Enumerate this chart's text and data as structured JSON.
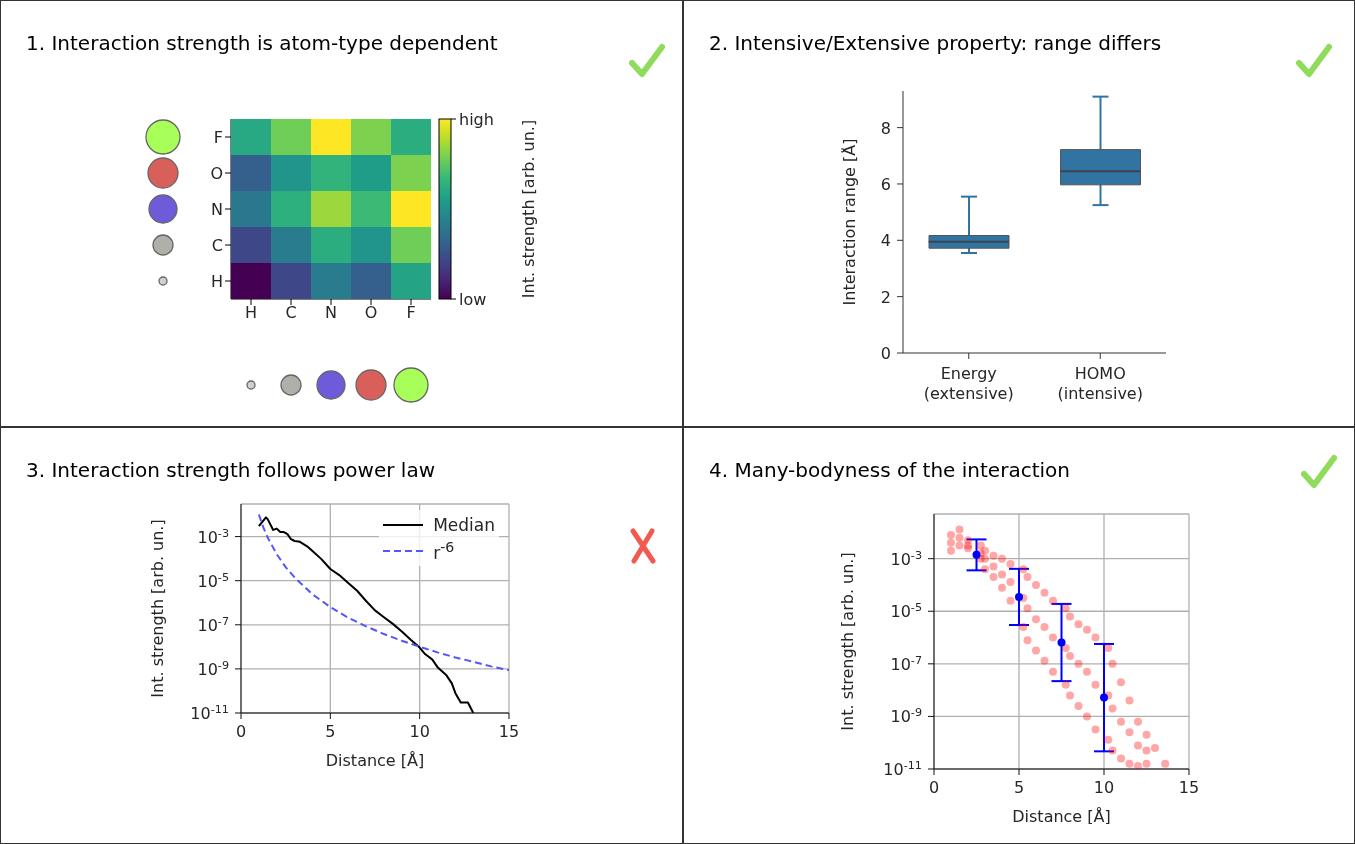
{
  "chart_data": [
    {
      "type": "heatmap",
      "title": "1. Interaction strength is atom-type dependent",
      "clabel": "Int. strength [arb. un.]",
      "categories": [
        "H",
        "C",
        "N",
        "O",
        "F"
      ],
      "y_categories": [
        "F",
        "O",
        "N",
        "C",
        "H"
      ],
      "cells": [
        [
          0.6,
          0.78,
          1.0,
          0.8,
          0.62
        ],
        [
          0.3,
          0.52,
          0.65,
          0.55,
          0.8
        ],
        [
          0.4,
          0.63,
          0.85,
          0.68,
          1.0
        ],
        [
          0.22,
          0.42,
          0.62,
          0.52,
          0.78
        ],
        [
          0.0,
          0.22,
          0.42,
          0.3,
          0.58
        ]
      ],
      "clim": [
        0,
        1
      ],
      "cticks": [
        {
          "value": 0,
          "label": "low"
        },
        {
          "value": 1,
          "label": "high"
        }
      ]
    },
    {
      "type": "box",
      "title": "2. Intensive/Extensive property: range differs",
      "ylabel": "Interaction range [Å]",
      "categories": [
        "Energy (extensive)",
        "HOMO (intensive)"
      ],
      "color": "#3274a1",
      "boxes": [
        {
          "low": 3.55,
          "q1": 3.72,
          "median": 3.95,
          "q3": 4.17,
          "high": 5.55
        },
        {
          "low": 5.25,
          "q1": 5.97,
          "median": 6.45,
          "q3": 7.22,
          "high": 9.1
        }
      ],
      "ylim": [
        0,
        9.3
      ],
      "yticks": [
        0,
        2,
        4,
        6,
        8
      ]
    },
    {
      "type": "line",
      "title": "3. Interaction strength follows power law",
      "xlabel": "Distance [Å]",
      "ylabel": "Int. strength [arb. un.]",
      "log": true,
      "grid": true,
      "legend": "top right",
      "xlim": [
        0,
        15
      ],
      "xticks": [
        0,
        5,
        10,
        15
      ],
      "ylim": [
        1e-11,
        0.03
      ],
      "yticks": [
        {
          "value": 1e-11,
          "label": "10$^{-11}$"
        },
        {
          "value": 1e-09,
          "label": "10$^{-9}$"
        },
        {
          "value": 1e-07,
          "label": "10$^{-7}$"
        },
        {
          "value": 1e-05,
          "label": "10$^{-5}$"
        },
        {
          "value": 0.001,
          "label": "10$^{-3}$"
        }
      ],
      "series": [
        {
          "name": "Median",
          "color": "#000000",
          "line_style": "solid",
          "x": [
            1.0,
            1.4,
            1.5,
            1.8,
            2.0,
            2.2,
            2.4,
            2.6,
            2.8,
            3.0,
            3.3,
            3.7,
            4.0,
            4.5,
            5.0,
            5.5,
            6.0,
            6.5,
            7.0,
            7.5,
            8.0,
            8.5,
            9.0,
            9.5,
            10.0,
            10.3,
            10.7,
            11.0,
            11.5,
            11.8,
            12.0,
            12.3,
            12.7,
            13.0
          ],
          "values": [
            0.003,
            0.0074,
            0.006,
            0.002,
            0.0023,
            0.0016,
            0.0016,
            0.0013,
            0.00076,
            0.00063,
            0.00058,
            0.00036,
            0.00022,
            9.5e-05,
            3.4e-05,
            1.8e-05,
            7.9e-06,
            3.5e-06,
            1.2e-06,
            4.5e-07,
            2.2e-07,
            1.1e-07,
            5e-08,
            2.1e-08,
            9.3e-09,
            4.7e-09,
            2.7e-09,
            1.2e-09,
            5.1e-10,
            2.2e-10,
            7.9e-11,
            3e-11,
            3e-11,
            1e-11
          ]
        },
        {
          "name": "r$^{-6}$",
          "color": "#5555ff",
          "line_style": "dashed",
          "x": [
            1,
            1.25,
            1.5,
            2,
            2.5,
            3,
            4,
            5,
            6,
            7,
            8,
            9,
            10,
            11,
            12,
            13,
            14,
            15
          ],
          "values": [
            0.01,
            0.0026,
            0.00088,
            0.00016,
            4.1e-05,
            1.4e-05,
            2.4e-06,
            6.4e-07,
            2.1e-07,
            8.5e-08,
            3.8e-08,
            1.9e-08,
            1e-08,
            5.6e-09,
            3.3e-09,
            2.1e-09,
            1.3e-09,
            8.8e-10
          ]
        }
      ]
    },
    {
      "type": "scatter",
      "title": "4. Many-bodyness of the interaction",
      "xlabel": "Distance [Å]",
      "ylabel": "Int. strength [arb. un.]",
      "log": true,
      "grid": true,
      "marker": "circle",
      "xlim": [
        0,
        15
      ],
      "xticks": [
        0,
        5,
        10,
        15
      ],
      "ylim": [
        1e-11,
        0.05
      ],
      "yticks": [
        {
          "value": 1e-11,
          "label": "10$^{-11}$"
        },
        {
          "value": 1e-09,
          "label": "10$^{-9}$"
        },
        {
          "value": 1e-07,
          "label": "10$^{-7}$"
        },
        {
          "value": 1e-05,
          "label": "10$^{-5}$"
        },
        {
          "value": 0.001,
          "label": "10$^{-3}$"
        }
      ],
      "series": [
        {
          "color": "#ff0000",
          "x": [
            1.0,
            1.0,
            1.0,
            1.5,
            1.5,
            1.5,
            2.0,
            2.0,
            2.0,
            2.75,
            2.75,
            2.75,
            3.0,
            3.0,
            3.0,
            3.5,
            3.5,
            3.5,
            4.0,
            4.0,
            4.0,
            4.5,
            4.5,
            4.5,
            5.25,
            5.25,
            5.25,
            5.5,
            5.5,
            5.5,
            6.0,
            6.0,
            6.0,
            6.5,
            6.5,
            6.5,
            7.0,
            7.0,
            7.0,
            7.75,
            7.75,
            7.75,
            8.0,
            8.0,
            8.0,
            8.5,
            8.5,
            8.5,
            9.0,
            9.0,
            9.0,
            9.5,
            9.5,
            9.5,
            10.25,
            10.25,
            10.25,
            10.5,
            10.5,
            10.5,
            11.0,
            11.0,
            11.0,
            11.5,
            11.5,
            11.5,
            12.0,
            12.0,
            12.0,
            12.5,
            12.5,
            12.5,
            13.0,
            13.6
          ],
          "values": [
            0.0079,
            0.004,
            0.002,
            0.013,
            0.0063,
            0.0032,
            0.005,
            0.0032,
            0.0025,
            0.0032,
            0.0016,
            0.001,
            0.002,
            0.001,
            0.0004,
            0.0013,
            0.0005,
            0.0002,
            0.001,
            0.00025,
            7.9e-05,
            0.00063,
            0.00013,
            2.5e-05,
            0.0004,
            3.2e-05,
            2.5e-06,
            0.0002,
            1.3e-05,
            7.9e-07,
            0.0001,
            5e-06,
            3.2e-07,
            5e-05,
            2.5e-06,
            1.3e-07,
            2.5e-05,
            1e-06,
            5e-08,
            1.3e-05,
            4e-07,
            1.6e-08,
            6.3e-06,
            2e-07,
            6.3e-09,
            3.2e-06,
            1e-07,
            2.5e-09,
            2e-06,
            5e-08,
            1e-09,
            1e-06,
            1.6e-08,
            3.2e-10,
            4e-07,
            6.3e-09,
            1.3e-10,
            1e-07,
            2e-09,
            5e-11,
            2e-08,
            6.3e-10,
            2.5e-11,
            4e-09,
            2.5e-10,
            1.6e-11,
            6.3e-10,
            7.9e-11,
            1.3e-11,
            2e-10,
            5e-11,
            1.6e-11,
            6.3e-11,
            1.6e-11
          ]
        },
        {
          "color": "#0000ff",
          "marker": "circle",
          "x": [
            2.5,
            5,
            7.5,
            10
          ],
          "values": [
            0.0014,
            3.5e-05,
            6.5e-07,
            5.2e-09
          ],
          "errors": [
            [
              0.00036,
              0.0054
            ],
            [
              3e-06,
              0.00041
            ],
            [
              2.2e-08,
              1.9e-05
            ],
            [
              4.7e-11,
              5.7e-07
            ]
          ]
        }
      ]
    }
  ]
}
